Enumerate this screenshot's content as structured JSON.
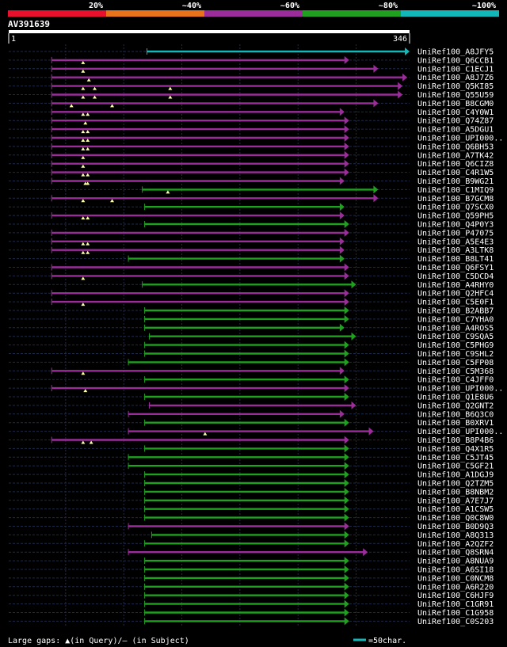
{
  "chart_data": {
    "type": "alignment-overview",
    "query": {
      "name": "AV391639",
      "start": 1,
      "end": 346
    },
    "identity_legend": [
      {
        "label": "20%",
        "color": "#e8112d"
      },
      {
        "label": "~40%",
        "color": "#e8731a"
      },
      {
        "label": "~60%",
        "color": "#9b2d9b"
      },
      {
        "label": "~80%",
        "color": "#1fa01f"
      },
      {
        "label": "~100%",
        "color": "#12b8b8"
      }
    ],
    "footer": {
      "gaps_text": "Large gaps: ▲(in Query)/– (in Subject)",
      "scale_text": "=50char."
    },
    "hits": [
      {
        "name": "UniRef100_A8JFY5",
        "start": 120,
        "end": 346,
        "band": 4,
        "gaps": []
      },
      {
        "name": "UniRef100_Q6CCB1",
        "start": 38,
        "end": 294,
        "band": 2,
        "gaps": [
          65
        ]
      },
      {
        "name": "UniRef100_C1ECJ1",
        "start": 38,
        "end": 319,
        "band": 2,
        "gaps": [
          65
        ]
      },
      {
        "name": "UniRef100_A8J7Z6",
        "start": 38,
        "end": 344,
        "band": 2,
        "gaps": [
          70
        ]
      },
      {
        "name": "UniRef100_Q5KI85",
        "start": 38,
        "end": 340,
        "band": 2,
        "gaps": [
          65,
          75,
          140
        ]
      },
      {
        "name": "UniRef100_Q55U59",
        "start": 38,
        "end": 340,
        "band": 2,
        "gaps": [
          65,
          75,
          140
        ]
      },
      {
        "name": "UniRef100_B8CGM0",
        "start": 38,
        "end": 319,
        "band": 2,
        "gaps": [
          55,
          90
        ]
      },
      {
        "name": "UniRef100_C4Y0W1",
        "start": 38,
        "end": 290,
        "band": 2,
        "gaps": [
          65,
          69
        ]
      },
      {
        "name": "UniRef100_Q74Z87",
        "start": 38,
        "end": 294,
        "band": 2,
        "gaps": [
          67
        ]
      },
      {
        "name": "UniRef100_A5DGU1",
        "start": 38,
        "end": 294,
        "band": 2,
        "gaps": [
          65,
          69
        ]
      },
      {
        "name": "UniRef100_UPI000..",
        "start": 38,
        "end": 294,
        "band": 2,
        "gaps": [
          65,
          69
        ]
      },
      {
        "name": "UniRef100_Q6BH53",
        "start": 38,
        "end": 294,
        "band": 2,
        "gaps": [
          65,
          69
        ]
      },
      {
        "name": "UniRef100_A7TK42",
        "start": 38,
        "end": 294,
        "band": 2,
        "gaps": [
          65
        ]
      },
      {
        "name": "UniRef100_Q6CIZ8",
        "start": 38,
        "end": 294,
        "band": 2,
        "gaps": [
          65
        ]
      },
      {
        "name": "UniRef100_C4R1W5",
        "start": 38,
        "end": 294,
        "band": 2,
        "gaps": [
          65,
          69
        ]
      },
      {
        "name": "UniRef100_B9WG21",
        "start": 38,
        "end": 290,
        "band": 2,
        "gaps": [
          67,
          69
        ]
      },
      {
        "name": "UniRef100_C1MIQ9",
        "start": 116,
        "end": 319,
        "band": 3,
        "gaps": [
          138
        ]
      },
      {
        "name": "UniRef100_B7GCM8",
        "start": 38,
        "end": 319,
        "band": 2,
        "gaps": [
          65,
          90
        ]
      },
      {
        "name": "UniRef100_Q7SCX0",
        "start": 118,
        "end": 290,
        "band": 3,
        "gaps": []
      },
      {
        "name": "UniRef100_Q59PH5",
        "start": 38,
        "end": 290,
        "band": 2,
        "gaps": [
          65,
          69
        ]
      },
      {
        "name": "UniRef100_Q4P0Y3",
        "start": 118,
        "end": 294,
        "band": 3,
        "gaps": []
      },
      {
        "name": "UniRef100_P47075",
        "start": 38,
        "end": 294,
        "band": 2,
        "gaps": []
      },
      {
        "name": "UniRef100_A5E4E3",
        "start": 38,
        "end": 290,
        "band": 2,
        "gaps": [
          65,
          69
        ]
      },
      {
        "name": "UniRef100_A3LTK8",
        "start": 38,
        "end": 290,
        "band": 2,
        "gaps": [
          65,
          69
        ]
      },
      {
        "name": "UniRef100_B8LT41",
        "start": 104,
        "end": 290,
        "band": 3,
        "gaps": []
      },
      {
        "name": "UniRef100_Q6FSY1",
        "start": 38,
        "end": 294,
        "band": 2,
        "gaps": []
      },
      {
        "name": "UniRef100_C5DCD4",
        "start": 38,
        "end": 294,
        "band": 2,
        "gaps": [
          65
        ]
      },
      {
        "name": "UniRef100_A4RHY0",
        "start": 116,
        "end": 300,
        "band": 3,
        "gaps": []
      },
      {
        "name": "UniRef100_Q2HFC4",
        "start": 38,
        "end": 294,
        "band": 2,
        "gaps": []
      },
      {
        "name": "UniRef100_C5E0F1",
        "start": 38,
        "end": 294,
        "band": 2,
        "gaps": [
          65
        ]
      },
      {
        "name": "UniRef100_B2ABB7",
        "start": 118,
        "end": 294,
        "band": 3,
        "gaps": []
      },
      {
        "name": "UniRef100_C7YHA0",
        "start": 118,
        "end": 294,
        "band": 3,
        "gaps": []
      },
      {
        "name": "UniRef100_A4ROS5",
        "start": 118,
        "end": 290,
        "band": 3,
        "gaps": []
      },
      {
        "name": "UniRef100_C9SQA5",
        "start": 122,
        "end": 300,
        "band": 3,
        "gaps": []
      },
      {
        "name": "UniRef100_C5PHG9",
        "start": 118,
        "end": 294,
        "band": 3,
        "gaps": []
      },
      {
        "name": "UniRef100_C9SHL2",
        "start": 118,
        "end": 294,
        "band": 3,
        "gaps": []
      },
      {
        "name": "UniRef100_C5FP08",
        "start": 104,
        "end": 294,
        "band": 3,
        "gaps": []
      },
      {
        "name": "UniRef100_C5M368",
        "start": 38,
        "end": 290,
        "band": 2,
        "gaps": [
          65
        ]
      },
      {
        "name": "UniRef100_C4JFF0",
        "start": 118,
        "end": 294,
        "band": 3,
        "gaps": []
      },
      {
        "name": "UniRef100_UPI000..",
        "start": 38,
        "end": 294,
        "band": 2,
        "gaps": [
          67
        ]
      },
      {
        "name": "UniRef100_Q1E8U6",
        "start": 118,
        "end": 294,
        "band": 3,
        "gaps": []
      },
      {
        "name": "UniRef100_Q2GNT2",
        "start": 122,
        "end": 300,
        "band": 2,
        "gaps": []
      },
      {
        "name": "UniRef100_B6Q3C0",
        "start": 104,
        "end": 290,
        "band": 2,
        "gaps": []
      },
      {
        "name": "UniRef100_B0XRV1",
        "start": 118,
        "end": 294,
        "band": 3,
        "gaps": []
      },
      {
        "name": "UniRef100_UPI000..",
        "start": 104,
        "end": 315,
        "band": 2,
        "gaps": [
          170
        ]
      },
      {
        "name": "UniRef100_B8P4B6",
        "start": 38,
        "end": 294,
        "band": 2,
        "gaps": [
          65,
          72
        ]
      },
      {
        "name": "UniRef100_Q4X1R5",
        "start": 118,
        "end": 294,
        "band": 3,
        "gaps": []
      },
      {
        "name": "UniRef100_C5JT45",
        "start": 104,
        "end": 294,
        "band": 3,
        "gaps": []
      },
      {
        "name": "UniRef100_C5GF21",
        "start": 104,
        "end": 294,
        "band": 3,
        "gaps": []
      },
      {
        "name": "UniRef100_A1DGJ9",
        "start": 118,
        "end": 294,
        "band": 3,
        "gaps": []
      },
      {
        "name": "UniRef100_Q2TZM5",
        "start": 118,
        "end": 294,
        "band": 3,
        "gaps": []
      },
      {
        "name": "UniRef100_B8NBM2",
        "start": 118,
        "end": 294,
        "band": 3,
        "gaps": []
      },
      {
        "name": "UniRef100_A7E7J7",
        "start": 118,
        "end": 294,
        "band": 3,
        "gaps": []
      },
      {
        "name": "UniRef100_A1CSW5",
        "start": 118,
        "end": 294,
        "band": 3,
        "gaps": []
      },
      {
        "name": "UniRef100_Q0C8W0",
        "start": 118,
        "end": 294,
        "band": 3,
        "gaps": []
      },
      {
        "name": "UniRef100_B0D9Q3",
        "start": 104,
        "end": 294,
        "band": 2,
        "gaps": []
      },
      {
        "name": "UniRef100_A8Q313",
        "start": 124,
        "end": 294,
        "band": 3,
        "gaps": []
      },
      {
        "name": "UniRef100_A2QZF2",
        "start": 118,
        "end": 294,
        "band": 3,
        "gaps": []
      },
      {
        "name": "UniRef100_Q8SRN4",
        "start": 104,
        "end": 310,
        "band": 2,
        "gaps": []
      },
      {
        "name": "UniRef100_A8NUA9",
        "start": 118,
        "end": 294,
        "band": 3,
        "gaps": []
      },
      {
        "name": "UniRef100_A6SI18",
        "start": 118,
        "end": 294,
        "band": 3,
        "gaps": []
      },
      {
        "name": "UniRef100_C0NCM8",
        "start": 118,
        "end": 294,
        "band": 3,
        "gaps": []
      },
      {
        "name": "UniRef100_A6R220",
        "start": 118,
        "end": 294,
        "band": 3,
        "gaps": []
      },
      {
        "name": "UniRef100_C6HJF9",
        "start": 118,
        "end": 294,
        "band": 3,
        "gaps": []
      },
      {
        "name": "UniRef100_C1GR91",
        "start": 118,
        "end": 294,
        "band": 3,
        "gaps": []
      },
      {
        "name": "UniRef100_C1G958",
        "start": 118,
        "end": 294,
        "band": 3,
        "gaps": []
      },
      {
        "name": "UniRef100_C0S203",
        "start": 118,
        "end": 294,
        "band": 3,
        "gaps": []
      }
    ]
  }
}
